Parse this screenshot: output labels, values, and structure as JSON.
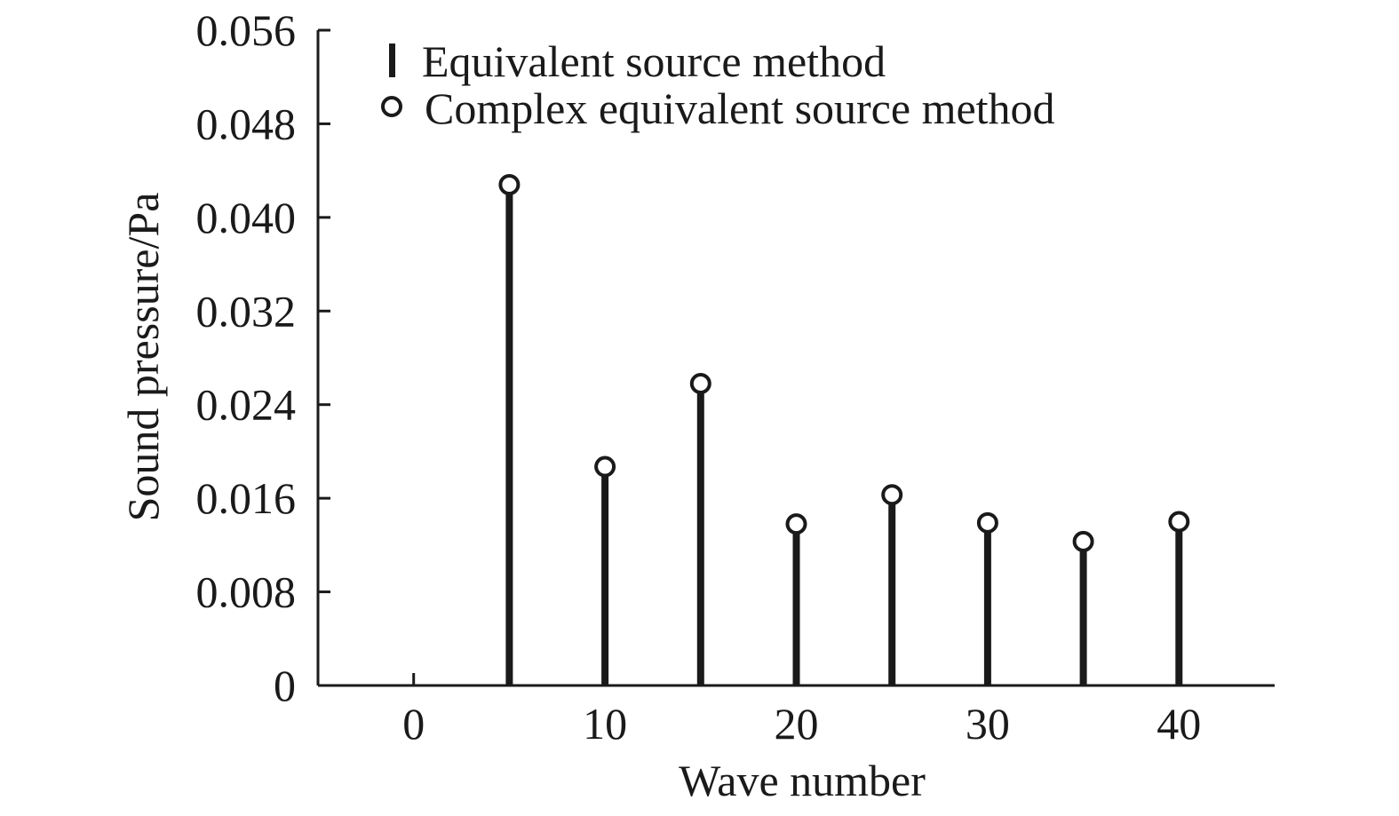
{
  "chart_data": {
    "type": "stem",
    "xlabel": "Wave number",
    "ylabel": "Sound pressure/Pa",
    "xlim": [
      -5,
      45
    ],
    "ylim": [
      0,
      0.056
    ],
    "xticks": [
      0,
      10,
      20,
      30,
      40
    ],
    "xtick_labels": [
      "0",
      "10",
      "20",
      "30",
      "40"
    ],
    "yticks": [
      0,
      0.008,
      0.016,
      0.024,
      0.032,
      0.04,
      0.048,
      0.056
    ],
    "ytick_labels": [
      "0",
      "0.008",
      "0.016",
      "0.024",
      "0.032",
      "0.040",
      "0.048",
      "0.056"
    ],
    "grid": false,
    "legend_position": "top-left",
    "series": [
      {
        "name": "Equivalent source method",
        "marker": "stem",
        "x": [
          0,
          5,
          10,
          15,
          20,
          25,
          30,
          35,
          40
        ],
        "values": [
          0,
          0.0428,
          0.0187,
          0.0258,
          0.0138,
          0.0163,
          0.0139,
          0.0123,
          0.014
        ]
      },
      {
        "name": "Complex equivalent source method",
        "marker": "circle",
        "x": [
          5,
          10,
          15,
          20,
          25,
          30,
          35,
          40
        ],
        "values": [
          0.0428,
          0.0187,
          0.0258,
          0.0138,
          0.0163,
          0.0139,
          0.0123,
          0.014
        ]
      }
    ]
  }
}
